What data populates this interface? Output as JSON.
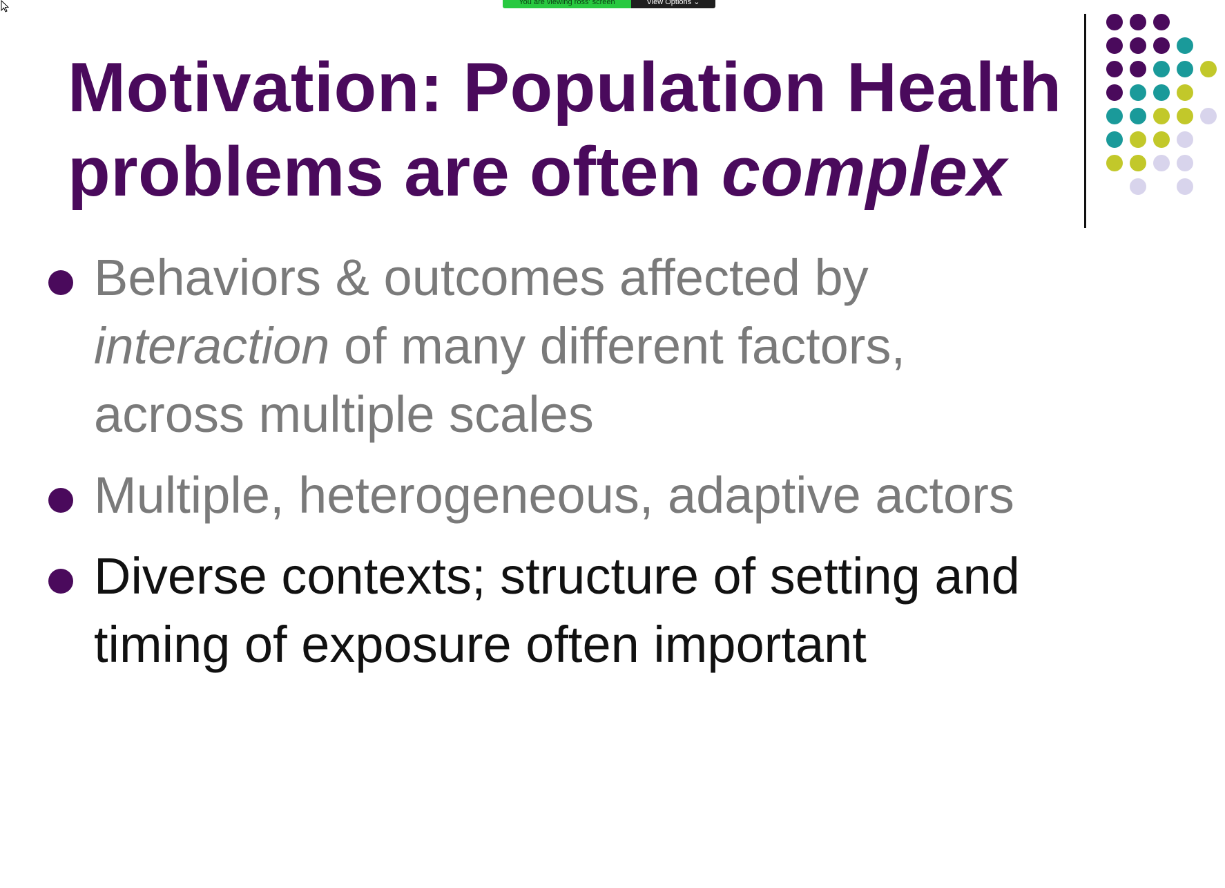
{
  "share_banner": {
    "status_text": "You are viewing ross' screen",
    "view_options_label": "View Options ⌄",
    "status_color": "#28c940"
  },
  "slide": {
    "title": {
      "line1": "Motivation: Population Health",
      "line2_start": "problems are often ",
      "line2_emphasis": "complex",
      "color": "#4a0a5c"
    },
    "bullets": [
      {
        "line1": "Behaviors & outcomes affected by",
        "line2_emphasis": "interaction",
        "line2_rest": " of many different factors,",
        "line3": "across multiple scales",
        "tone": "gray"
      },
      {
        "line1": "Multiple, heterogeneous, adaptive actors",
        "tone": "gray"
      },
      {
        "line1": "Diverse contexts; structure of setting and",
        "line2": "timing of exposure often important",
        "tone": "black"
      }
    ],
    "decoration_colors": {
      "purple": "#4a0a5c",
      "teal": "#1a9a9a",
      "olive": "#c2c82a",
      "lavender": "#d8d4ec"
    }
  }
}
